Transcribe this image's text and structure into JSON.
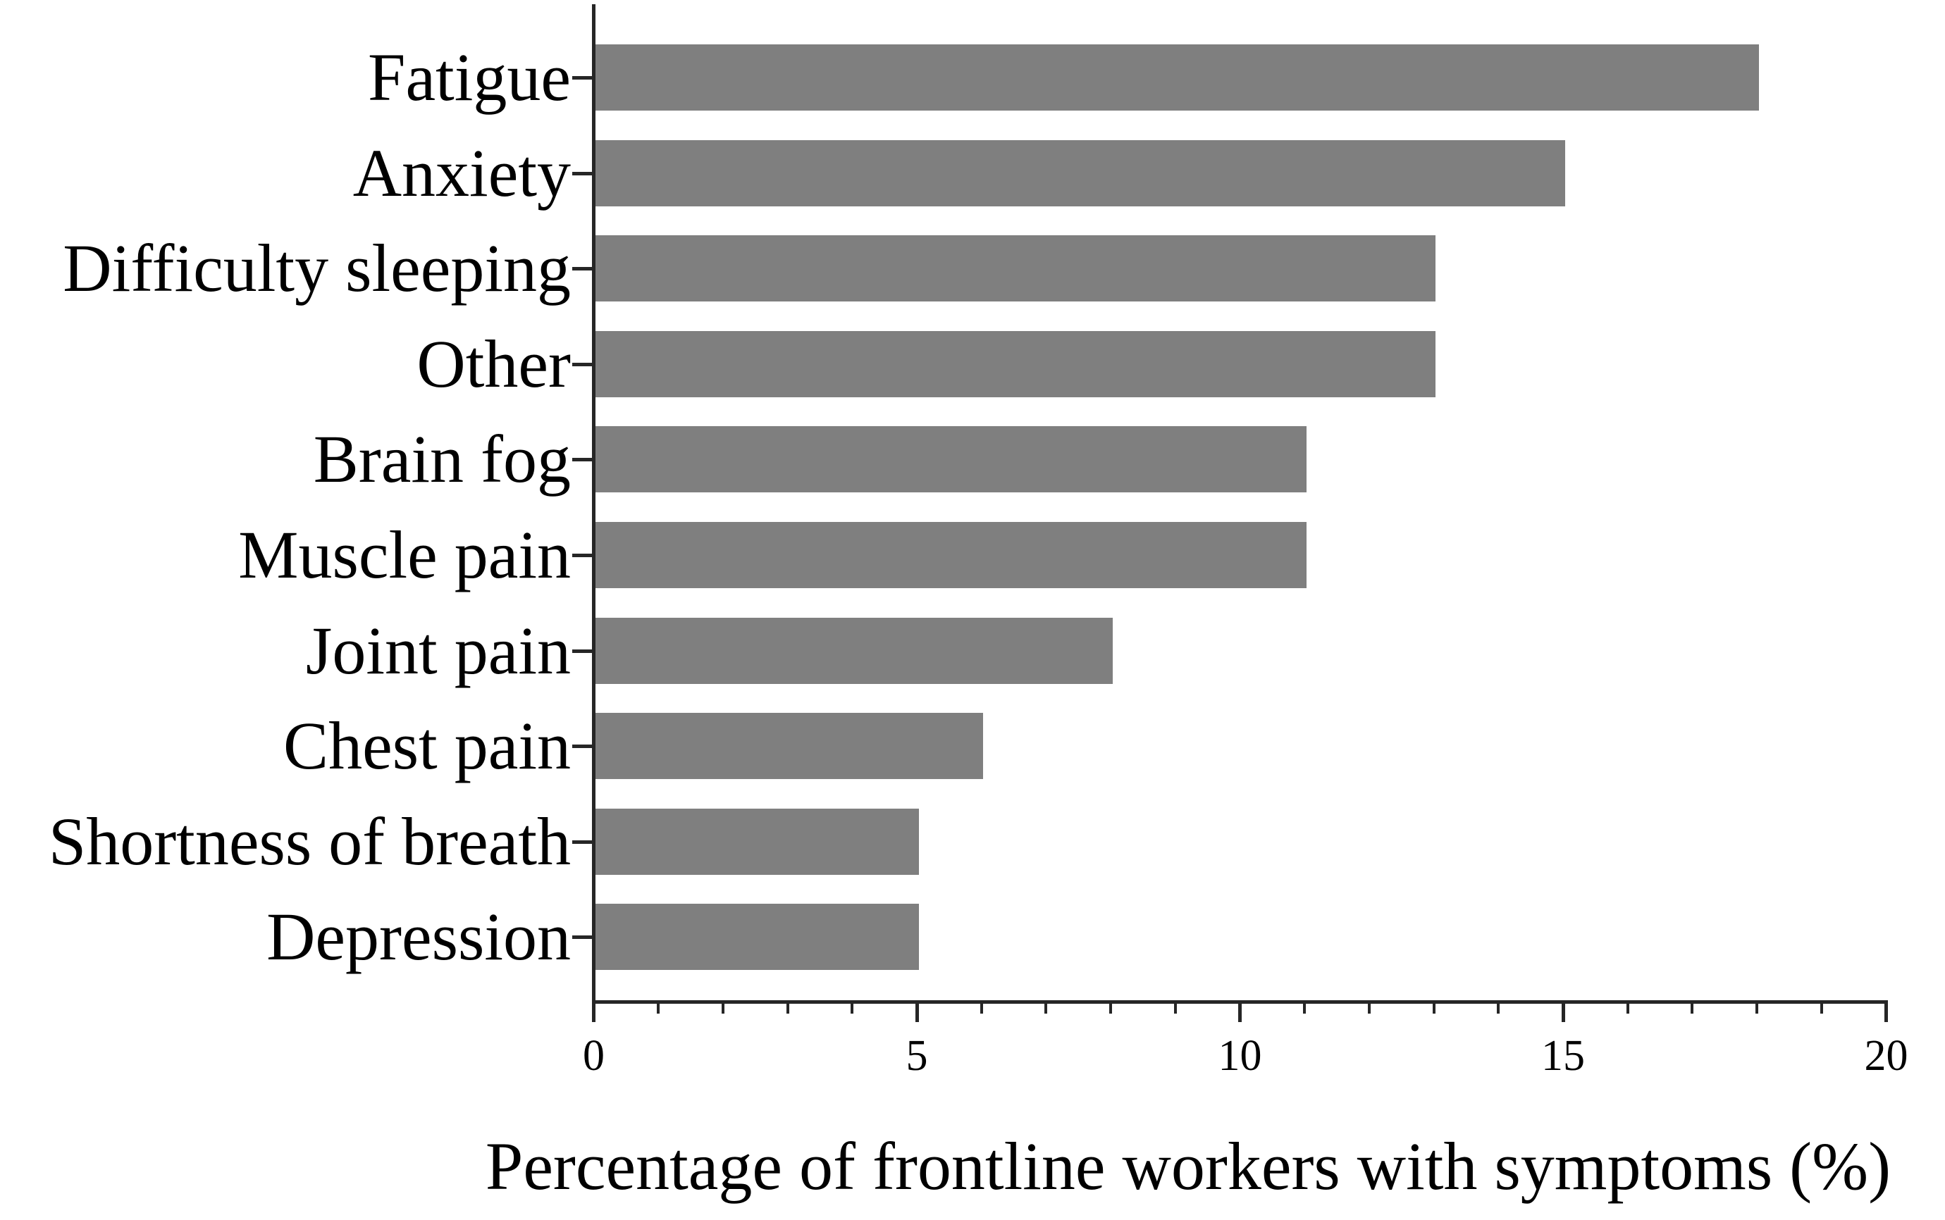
{
  "figure": {
    "background_color": "#ffffff",
    "bar_color": "#7f7f7f",
    "axis_color": "#262626",
    "text_color": "#000000"
  },
  "chart_data": {
    "type": "bar",
    "orientation": "horizontal",
    "title": "",
    "xlabel": "Percentage of frontline workers with symptoms (%)",
    "ylabel": "",
    "categories": [
      "Fatigue",
      "Anxiety",
      "Difficulty sleeping",
      "Other",
      "Brain fog",
      "Muscle pain",
      "Joint pain",
      "Chest pain",
      "Shortness of breath",
      "Depression"
    ],
    "values": [
      18,
      15,
      13,
      13,
      11,
      11,
      8,
      6,
      5,
      5
    ],
    "xlim": [
      0,
      20
    ],
    "xticks": [
      0,
      5,
      10,
      15,
      20
    ],
    "xtick_labels": [
      "0",
      "5",
      "10",
      "15",
      "20"
    ],
    "minor_tick_interval": 1,
    "grid": false,
    "legend": null
  }
}
